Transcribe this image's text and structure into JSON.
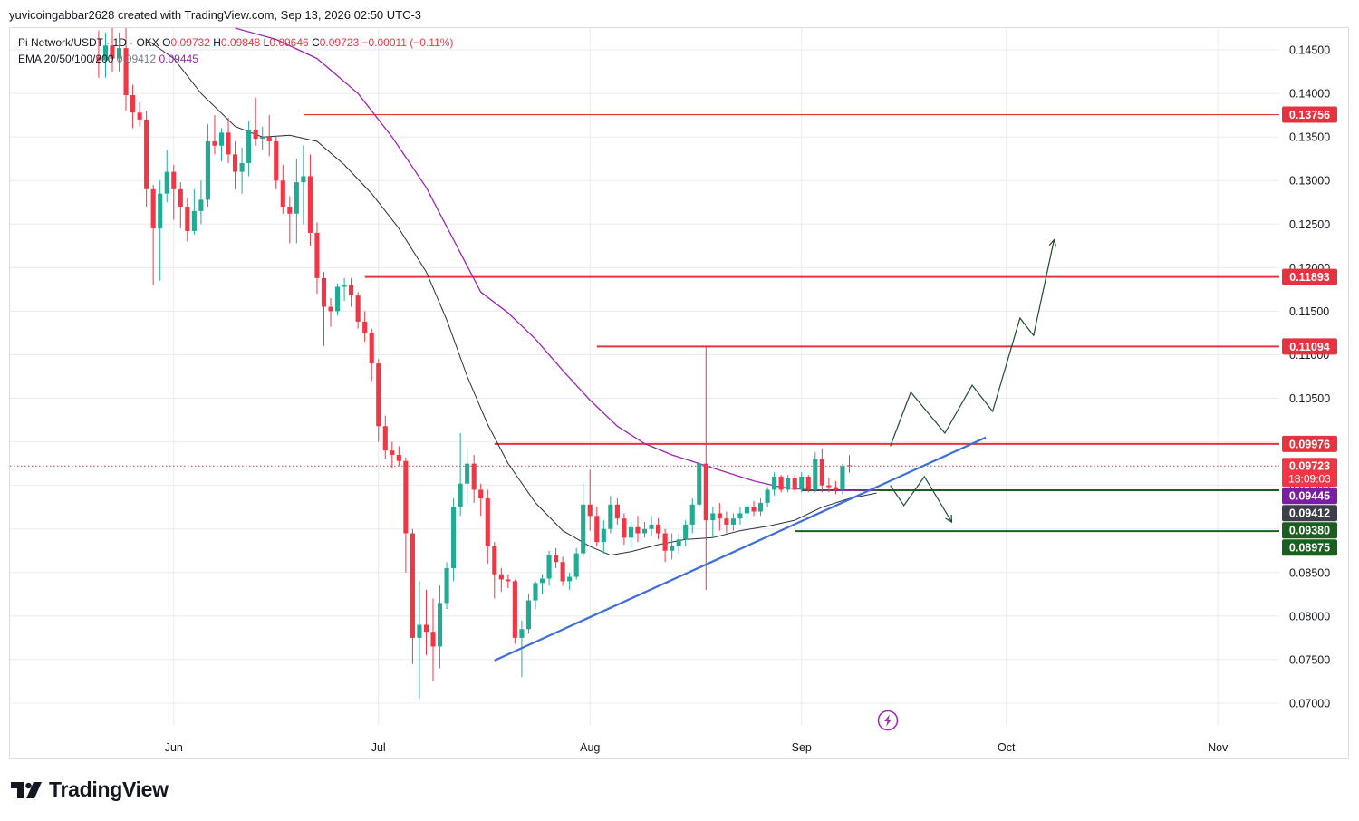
{
  "header": {
    "published_by": "yuvicoingabbar2628 created with TradingView.com, Sep 13, 2026 02:50 UTC-3"
  },
  "legend": {
    "symbol": "Pi Network/USDT · 1D · OKX",
    "open_label": "O",
    "open": "0.09732",
    "high_label": "H",
    "high": "0.09848",
    "low_label": "L",
    "low": "0.09646",
    "close_label": "C",
    "close": "0.09723",
    "change": "−0.00011 (−0.11%)",
    "ema_label": "EMA 20/50/100/200",
    "ema_fast": "0.09412",
    "ema_slow": "0.09445"
  },
  "brand": {
    "name": "TradingView"
  },
  "colors": {
    "up": "#22ab94",
    "down": "#f23645",
    "ema_fast": "#2a2e39",
    "ema_slow": "#9c27b0",
    "trendline": "#3d6fd6",
    "resistance": "#e53340",
    "support": "#1b5e20",
    "grid": "#e9ebf0"
  },
  "chart_data": {
    "type": "candlestick",
    "title": "Pi Network/USDT · 1D · OKX",
    "interval": "1D",
    "ylim": [
      0.0675,
      0.1475
    ],
    "y_ticks": [
      "0.14500",
      "0.14000",
      "0.13500",
      "0.13000",
      "0.12500",
      "0.12000",
      "0.11500",
      "0.11000",
      "0.10500",
      "0.10000",
      "0.09500",
      "0.09000",
      "0.08500",
      "0.08000",
      "0.07500",
      "0.07000"
    ],
    "x_start": "2026-05-08",
    "x_end": "2026-11-10",
    "x_ticks": [
      {
        "label": "Jun",
        "date": "2026-06-01"
      },
      {
        "label": "Jul",
        "date": "2026-07-01"
      },
      {
        "label": "Aug",
        "date": "2026-08-01"
      },
      {
        "label": "Sep",
        "date": "2026-09-01"
      },
      {
        "label": "Oct",
        "date": "2026-10-01"
      },
      {
        "label": "Nov",
        "date": "2026-11-01"
      }
    ],
    "grid": true,
    "first_candle_date": "2026-05-21",
    "candles": [
      {
        "o": 0.1442,
        "h": 0.1472,
        "l": 0.1418,
        "c": 0.1438
      },
      {
        "o": 0.1438,
        "h": 0.147,
        "l": 0.1418,
        "c": 0.1455
      },
      {
        "o": 0.1455,
        "h": 0.1475,
        "l": 0.1425,
        "c": 0.144
      },
      {
        "o": 0.144,
        "h": 0.147,
        "l": 0.1425,
        "c": 0.1452
      },
      {
        "o": 0.1452,
        "h": 0.1475,
        "l": 0.138,
        "c": 0.1398
      },
      {
        "o": 0.1398,
        "h": 0.141,
        "l": 0.136,
        "c": 0.1378
      },
      {
        "o": 0.1378,
        "h": 0.139,
        "l": 0.1362,
        "c": 0.137
      },
      {
        "o": 0.137,
        "h": 0.138,
        "l": 0.127,
        "c": 0.129
      },
      {
        "o": 0.129,
        "h": 0.1295,
        "l": 0.118,
        "c": 0.1245
      },
      {
        "o": 0.1245,
        "h": 0.13,
        "l": 0.1185,
        "c": 0.1285
      },
      {
        "o": 0.1285,
        "h": 0.1335,
        "l": 0.1275,
        "c": 0.131
      },
      {
        "o": 0.131,
        "h": 0.1318,
        "l": 0.1255,
        "c": 0.129
      },
      {
        "o": 0.129,
        "h": 0.1298,
        "l": 0.1245,
        "c": 0.127
      },
      {
        "o": 0.127,
        "h": 0.128,
        "l": 0.123,
        "c": 0.1242
      },
      {
        "o": 0.1242,
        "h": 0.129,
        "l": 0.1238,
        "c": 0.1265
      },
      {
        "o": 0.1265,
        "h": 0.13,
        "l": 0.125,
        "c": 0.1278
      },
      {
        "o": 0.1278,
        "h": 0.1365,
        "l": 0.127,
        "c": 0.1345
      },
      {
        "o": 0.1345,
        "h": 0.1375,
        "l": 0.133,
        "c": 0.134
      },
      {
        "o": 0.134,
        "h": 0.136,
        "l": 0.1322,
        "c": 0.1355
      },
      {
        "o": 0.1355,
        "h": 0.1372,
        "l": 0.132,
        "c": 0.133
      },
      {
        "o": 0.133,
        "h": 0.1345,
        "l": 0.129,
        "c": 0.131
      },
      {
        "o": 0.131,
        "h": 0.1338,
        "l": 0.1285,
        "c": 0.132
      },
      {
        "o": 0.132,
        "h": 0.1368,
        "l": 0.1305,
        "c": 0.1358
      },
      {
        "o": 0.1358,
        "h": 0.1395,
        "l": 0.134,
        "c": 0.1348
      },
      {
        "o": 0.1348,
        "h": 0.1362,
        "l": 0.1335,
        "c": 0.135
      },
      {
        "o": 0.135,
        "h": 0.1375,
        "l": 0.1328,
        "c": 0.1345
      },
      {
        "o": 0.1345,
        "h": 0.135,
        "l": 0.129,
        "c": 0.13
      },
      {
        "o": 0.13,
        "h": 0.1318,
        "l": 0.1262,
        "c": 0.127
      },
      {
        "o": 0.127,
        "h": 0.1282,
        "l": 0.1228,
        "c": 0.1262
      },
      {
        "o": 0.1262,
        "h": 0.1325,
        "l": 0.1228,
        "c": 0.1298
      },
      {
        "o": 0.1298,
        "h": 0.134,
        "l": 0.125,
        "c": 0.1305
      },
      {
        "o": 0.1305,
        "h": 0.133,
        "l": 0.1225,
        "c": 0.124
      },
      {
        "o": 0.124,
        "h": 0.1252,
        "l": 0.117,
        "c": 0.1188
      },
      {
        "o": 0.1188,
        "h": 0.1195,
        "l": 0.111,
        "c": 0.1155
      },
      {
        "o": 0.1155,
        "h": 0.1165,
        "l": 0.1132,
        "c": 0.115
      },
      {
        "o": 0.115,
        "h": 0.1182,
        "l": 0.1145,
        "c": 0.1178
      },
      {
        "o": 0.1178,
        "h": 0.1188,
        "l": 0.1162,
        "c": 0.118
      },
      {
        "o": 0.118,
        "h": 0.1188,
        "l": 0.1155,
        "c": 0.1168
      },
      {
        "o": 0.1168,
        "h": 0.1172,
        "l": 0.113,
        "c": 0.1138
      },
      {
        "o": 0.1138,
        "h": 0.115,
        "l": 0.1115,
        "c": 0.1125
      },
      {
        "o": 0.1125,
        "h": 0.113,
        "l": 0.107,
        "c": 0.109
      },
      {
        "o": 0.109,
        "h": 0.1095,
        "l": 0.1,
        "c": 0.1018
      },
      {
        "o": 0.1018,
        "h": 0.103,
        "l": 0.098,
        "c": 0.099
      },
      {
        "o": 0.099,
        "h": 0.1,
        "l": 0.097,
        "c": 0.0985
      },
      {
        "o": 0.0985,
        "h": 0.0995,
        "l": 0.0972,
        "c": 0.0978
      },
      {
        "o": 0.0978,
        "h": 0.0982,
        "l": 0.085,
        "c": 0.0895
      },
      {
        "o": 0.0895,
        "h": 0.09,
        "l": 0.0745,
        "c": 0.0775
      },
      {
        "o": 0.0775,
        "h": 0.084,
        "l": 0.0705,
        "c": 0.079
      },
      {
        "o": 0.079,
        "h": 0.083,
        "l": 0.0755,
        "c": 0.0782
      },
      {
        "o": 0.0782,
        "h": 0.082,
        "l": 0.0725,
        "c": 0.0765
      },
      {
        "o": 0.0765,
        "h": 0.0835,
        "l": 0.074,
        "c": 0.0815
      },
      {
        "o": 0.0815,
        "h": 0.0862,
        "l": 0.0808,
        "c": 0.0855
      },
      {
        "o": 0.0855,
        "h": 0.0935,
        "l": 0.084,
        "c": 0.0925
      },
      {
        "o": 0.0925,
        "h": 0.101,
        "l": 0.0915,
        "c": 0.0952
      },
      {
        "o": 0.0952,
        "h": 0.0995,
        "l": 0.0928,
        "c": 0.0975
      },
      {
        "o": 0.0975,
        "h": 0.0985,
        "l": 0.093,
        "c": 0.0945
      },
      {
        "o": 0.0945,
        "h": 0.0952,
        "l": 0.0915,
        "c": 0.0935
      },
      {
        "o": 0.0935,
        "h": 0.0945,
        "l": 0.086,
        "c": 0.088
      },
      {
        "o": 0.088,
        "h": 0.0885,
        "l": 0.082,
        "c": 0.0848
      },
      {
        "o": 0.0848,
        "h": 0.0855,
        "l": 0.0828,
        "c": 0.0842
      },
      {
        "o": 0.0842,
        "h": 0.0848,
        "l": 0.0832,
        "c": 0.084
      },
      {
        "o": 0.084,
        "h": 0.0842,
        "l": 0.0768,
        "c": 0.0775
      },
      {
        "o": 0.0775,
        "h": 0.0795,
        "l": 0.073,
        "c": 0.0785
      },
      {
        "o": 0.0785,
        "h": 0.0825,
        "l": 0.078,
        "c": 0.0818
      },
      {
        "o": 0.0818,
        "h": 0.084,
        "l": 0.0808,
        "c": 0.0838
      },
      {
        "o": 0.0838,
        "h": 0.0848,
        "l": 0.0825,
        "c": 0.0843
      },
      {
        "o": 0.0843,
        "h": 0.0875,
        "l": 0.0835,
        "c": 0.087
      },
      {
        "o": 0.087,
        "h": 0.0878,
        "l": 0.0855,
        "c": 0.0862
      },
      {
        "o": 0.0862,
        "h": 0.0868,
        "l": 0.0835,
        "c": 0.084
      },
      {
        "o": 0.084,
        "h": 0.085,
        "l": 0.083,
        "c": 0.0845
      },
      {
        "o": 0.0845,
        "h": 0.0878,
        "l": 0.0842,
        "c": 0.0872
      },
      {
        "o": 0.0872,
        "h": 0.0952,
        "l": 0.0868,
        "c": 0.0928
      },
      {
        "o": 0.0928,
        "h": 0.0968,
        "l": 0.0898,
        "c": 0.0915
      },
      {
        "o": 0.0915,
        "h": 0.0925,
        "l": 0.088,
        "c": 0.0885
      },
      {
        "o": 0.0885,
        "h": 0.091,
        "l": 0.0872,
        "c": 0.09
      },
      {
        "o": 0.09,
        "h": 0.0938,
        "l": 0.0895,
        "c": 0.0928
      },
      {
        "o": 0.0928,
        "h": 0.0935,
        "l": 0.0905,
        "c": 0.0912
      },
      {
        "o": 0.0912,
        "h": 0.0918,
        "l": 0.0882,
        "c": 0.089
      },
      {
        "o": 0.089,
        "h": 0.0908,
        "l": 0.0878,
        "c": 0.0902
      },
      {
        "o": 0.0902,
        "h": 0.0915,
        "l": 0.0885,
        "c": 0.0895
      },
      {
        "o": 0.0895,
        "h": 0.0908,
        "l": 0.089,
        "c": 0.09
      },
      {
        "o": 0.09,
        "h": 0.0915,
        "l": 0.0892,
        "c": 0.0905
      },
      {
        "o": 0.0905,
        "h": 0.0912,
        "l": 0.0888,
        "c": 0.0895
      },
      {
        "o": 0.0895,
        "h": 0.09,
        "l": 0.0862,
        "c": 0.0875
      },
      {
        "o": 0.0875,
        "h": 0.0895,
        "l": 0.0865,
        "c": 0.088
      },
      {
        "o": 0.088,
        "h": 0.0895,
        "l": 0.0872,
        "c": 0.0888
      },
      {
        "o": 0.0888,
        "h": 0.091,
        "l": 0.088,
        "c": 0.0905
      },
      {
        "o": 0.0905,
        "h": 0.0935,
        "l": 0.0895,
        "c": 0.0928
      },
      {
        "o": 0.0928,
        "h": 0.0978,
        "l": 0.0925,
        "c": 0.0975
      },
      {
        "o": 0.0975,
        "h": 0.111,
        "l": 0.083,
        "c": 0.091
      },
      {
        "o": 0.091,
        "h": 0.0925,
        "l": 0.089,
        "c": 0.0918
      },
      {
        "o": 0.0918,
        "h": 0.093,
        "l": 0.0898,
        "c": 0.0912
      },
      {
        "o": 0.0912,
        "h": 0.092,
        "l": 0.0895,
        "c": 0.0905
      },
      {
        "o": 0.0905,
        "h": 0.0918,
        "l": 0.0898,
        "c": 0.0912
      },
      {
        "o": 0.0912,
        "h": 0.0925,
        "l": 0.0905,
        "c": 0.0918
      },
      {
        "o": 0.0918,
        "h": 0.0928,
        "l": 0.0912,
        "c": 0.0925
      },
      {
        "o": 0.0925,
        "h": 0.0932,
        "l": 0.0915,
        "c": 0.092
      },
      {
        "o": 0.092,
        "h": 0.0935,
        "l": 0.0915,
        "c": 0.093
      },
      {
        "o": 0.093,
        "h": 0.0948,
        "l": 0.0925,
        "c": 0.0945
      },
      {
        "o": 0.0945,
        "h": 0.0965,
        "l": 0.0938,
        "c": 0.096
      },
      {
        "o": 0.096,
        "h": 0.0962,
        "l": 0.0942,
        "c": 0.0945
      },
      {
        "o": 0.0945,
        "h": 0.0962,
        "l": 0.0942,
        "c": 0.0958
      },
      {
        "o": 0.0958,
        "h": 0.0962,
        "l": 0.0942,
        "c": 0.0945
      },
      {
        "o": 0.0945,
        "h": 0.0965,
        "l": 0.0942,
        "c": 0.096
      },
      {
        "o": 0.096,
        "h": 0.0962,
        "l": 0.0942,
        "c": 0.0945
      },
      {
        "o": 0.0945,
        "h": 0.0988,
        "l": 0.0942,
        "c": 0.098
      },
      {
        "o": 0.098,
        "h": 0.0992,
        "l": 0.0942,
        "c": 0.095
      },
      {
        "o": 0.095,
        "h": 0.0958,
        "l": 0.0942,
        "c": 0.0948
      },
      {
        "o": 0.0948,
        "h": 0.0955,
        "l": 0.094,
        "c": 0.0945
      },
      {
        "o": 0.0945,
        "h": 0.0975,
        "l": 0.094,
        "c": 0.0972
      },
      {
        "o": 0.09732,
        "h": 0.09848,
        "l": 0.09646,
        "c": 0.09723
      }
    ],
    "ema_fast_series": [
      {
        "date": "2026-05-28",
        "value": 0.1462
      },
      {
        "date": "2026-06-01",
        "value": 0.144
      },
      {
        "date": "2026-06-05",
        "value": 0.14
      },
      {
        "date": "2026-06-10",
        "value": 0.1362
      },
      {
        "date": "2026-06-14",
        "value": 0.135
      },
      {
        "date": "2026-06-18",
        "value": 0.1352
      },
      {
        "date": "2026-06-22",
        "value": 0.1345
      },
      {
        "date": "2026-06-26",
        "value": 0.1318
      },
      {
        "date": "2026-06-30",
        "value": 0.1285
      },
      {
        "date": "2026-07-04",
        "value": 0.1245
      },
      {
        "date": "2026-07-08",
        "value": 0.1195
      },
      {
        "date": "2026-07-11",
        "value": 0.114
      },
      {
        "date": "2026-07-14",
        "value": 0.1075
      },
      {
        "date": "2026-07-17",
        "value": 0.102
      },
      {
        "date": "2026-07-20",
        "value": 0.0975
      },
      {
        "date": "2026-07-24",
        "value": 0.093
      },
      {
        "date": "2026-07-28",
        "value": 0.0898
      },
      {
        "date": "2026-08-01",
        "value": 0.088
      },
      {
        "date": "2026-08-04",
        "value": 0.087
      },
      {
        "date": "2026-08-07",
        "value": 0.0874
      },
      {
        "date": "2026-08-11",
        "value": 0.0882
      },
      {
        "date": "2026-08-15",
        "value": 0.0888
      },
      {
        "date": "2026-08-19",
        "value": 0.089
      },
      {
        "date": "2026-08-23",
        "value": 0.0898
      },
      {
        "date": "2026-08-27",
        "value": 0.0903
      },
      {
        "date": "2026-08-31",
        "value": 0.091
      },
      {
        "date": "2026-09-04",
        "value": 0.0925
      },
      {
        "date": "2026-09-08",
        "value": 0.0935
      },
      {
        "date": "2026-09-12",
        "value": 0.09412
      }
    ],
    "ema_slow_series": [
      {
        "date": "2026-06-10",
        "value": 0.1475
      },
      {
        "date": "2026-06-16",
        "value": 0.1462
      },
      {
        "date": "2026-06-22",
        "value": 0.144
      },
      {
        "date": "2026-06-28",
        "value": 0.14
      },
      {
        "date": "2026-07-03",
        "value": 0.135
      },
      {
        "date": "2026-07-08",
        "value": 0.1292
      },
      {
        "date": "2026-07-12",
        "value": 0.1232
      },
      {
        "date": "2026-07-16",
        "value": 0.1172
      },
      {
        "date": "2026-07-20",
        "value": 0.1148
      },
      {
        "date": "2026-07-24",
        "value": 0.1118
      },
      {
        "date": "2026-07-28",
        "value": 0.1082
      },
      {
        "date": "2026-08-01",
        "value": 0.1048
      },
      {
        "date": "2026-08-05",
        "value": 0.1018
      },
      {
        "date": "2026-08-09",
        "value": 0.0998
      },
      {
        "date": "2026-08-13",
        "value": 0.0985
      },
      {
        "date": "2026-08-17",
        "value": 0.0975
      },
      {
        "date": "2026-08-21",
        "value": 0.0965
      },
      {
        "date": "2026-08-25",
        "value": 0.0955
      },
      {
        "date": "2026-08-29",
        "value": 0.0948
      },
      {
        "date": "2026-09-02",
        "value": 0.0945
      },
      {
        "date": "2026-09-07",
        "value": 0.0944
      },
      {
        "date": "2026-09-12",
        "value": 0.09445
      }
    ],
    "horizontal_levels": [
      {
        "from": "2026-06-20",
        "to": "2026-11-10",
        "value": 0.13756,
        "label": "0.13756",
        "kind": "resistance"
      },
      {
        "from": "2026-06-29",
        "to": "2026-11-10",
        "value": 0.11893,
        "label": "0.11893",
        "kind": "resistance"
      },
      {
        "from": "2026-08-02",
        "to": "2026-11-10",
        "value": 0.11094,
        "label": "0.11094",
        "kind": "resistance"
      },
      {
        "from": "2026-07-18",
        "to": "2026-11-10",
        "value": 0.09976,
        "label": "0.09976",
        "kind": "resistance"
      },
      {
        "from": "2026-09-01",
        "to": "2026-11-10",
        "value": 0.09445,
        "label": "0.09445",
        "kind": "support"
      },
      {
        "from": "2026-08-31",
        "to": "2026-11-10",
        "value": 0.08975,
        "label": "0.08975",
        "kind": "support"
      }
    ],
    "price_labels": [
      {
        "value": 0.09723,
        "label": "0.09723",
        "sub": "18:09:03",
        "kind": "last"
      },
      {
        "value": 0.09445,
        "label": "0.09445",
        "kind": "ema_slow"
      },
      {
        "value": 0.09412,
        "label": "0.09412",
        "kind": "ema_fast"
      },
      {
        "value": 0.0938,
        "label": "0.09380",
        "kind": "support_label"
      },
      {
        "value": 0.08975,
        "label": "0.08975",
        "kind": "support_label2"
      }
    ],
    "trendline": [
      {
        "date": "2026-07-18",
        "value": 0.0749
      },
      {
        "date": "2026-09-28",
        "value": 0.1005
      }
    ],
    "bullish_path": [
      {
        "date": "2026-09-14",
        "value": 0.0995
      },
      {
        "date": "2026-09-17",
        "value": 0.1057
      },
      {
        "date": "2026-09-22",
        "value": 0.101
      },
      {
        "date": "2026-09-26",
        "value": 0.1065
      },
      {
        "date": "2026-09-29",
        "value": 0.1035
      },
      {
        "date": "2026-10-03",
        "value": 0.1142
      },
      {
        "date": "2026-10-05",
        "value": 0.1122
      },
      {
        "date": "2026-10-08",
        "value": 0.1232
      }
    ],
    "bearish_path": [
      {
        "date": "2026-09-14",
        "value": 0.095
      },
      {
        "date": "2026-09-16",
        "value": 0.0927
      },
      {
        "date": "2026-09-19",
        "value": 0.096
      },
      {
        "date": "2026-09-23",
        "value": 0.0908
      }
    ]
  }
}
